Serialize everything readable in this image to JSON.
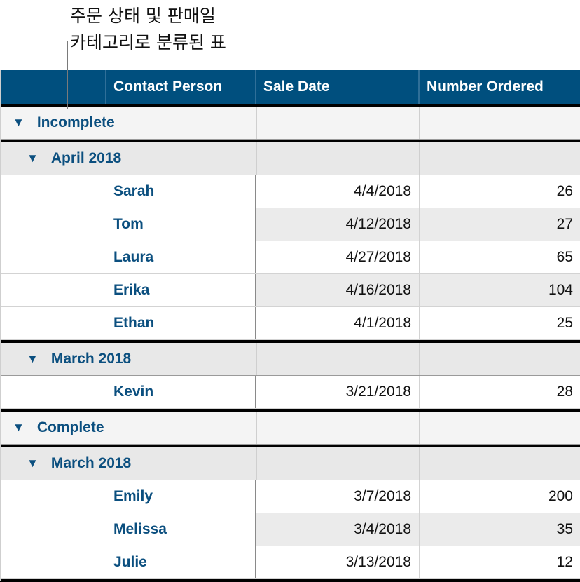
{
  "callout": {
    "line1": "주문 상태 및 판매일",
    "line2": "카테고리로 분류된 표"
  },
  "colors": {
    "header_bg": "#004f7e",
    "accent_text": "#0b4f7f"
  },
  "table": {
    "columns": [
      "",
      "Contact Person",
      "Sale Date",
      "Number Ordered"
    ],
    "groups": [
      {
        "label": "Incomplete",
        "icon": "disclosure-triangle-down-icon",
        "subgroups": [
          {
            "label": "April 2018",
            "icon": "disclosure-triangle-down-icon",
            "rows": [
              {
                "name": "Sarah",
                "date": "4/4/2018",
                "count": "26"
              },
              {
                "name": "Tom",
                "date": "4/12/2018",
                "count": "27"
              },
              {
                "name": "Laura",
                "date": "4/27/2018",
                "count": "65"
              },
              {
                "name": "Erika",
                "date": "4/16/2018",
                "count": "104"
              },
              {
                "name": "Ethan",
                "date": "4/1/2018",
                "count": "25"
              }
            ]
          },
          {
            "label": "March 2018",
            "icon": "disclosure-triangle-down-icon",
            "rows": [
              {
                "name": "Kevin",
                "date": "3/21/2018",
                "count": "28"
              }
            ]
          }
        ]
      },
      {
        "label": "Complete",
        "icon": "disclosure-triangle-down-icon",
        "subgroups": [
          {
            "label": "March 2018",
            "icon": "disclosure-triangle-down-icon",
            "rows": [
              {
                "name": "Emily",
                "date": "3/7/2018",
                "count": "200"
              },
              {
                "name": "Melissa",
                "date": "3/4/2018",
                "count": "35"
              },
              {
                "name": "Julie",
                "date": "3/13/2018",
                "count": "12"
              }
            ]
          }
        ]
      }
    ]
  }
}
